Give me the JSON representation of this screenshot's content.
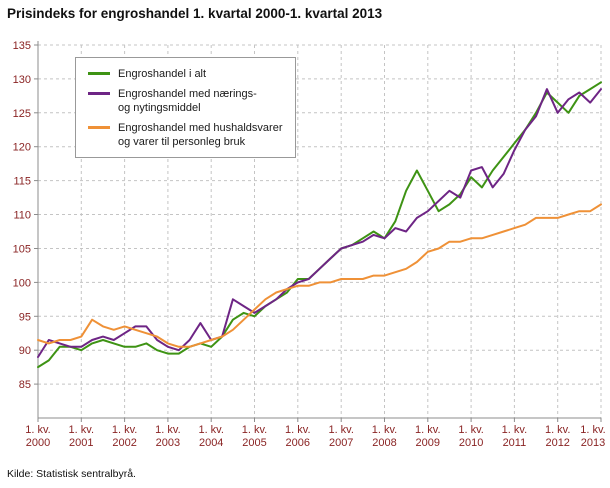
{
  "page": {
    "title": "Prisindeks for engroshandel 1. kvartal 2000-1. kvartal 2013",
    "source": "Kilde: Statistisk sentralbyrå."
  },
  "chart_data": {
    "type": "line",
    "title": "Prisindeks for engroshandel 1. kvartal 2000-1. kvartal 2013",
    "grid": true,
    "legend_position": "top-left",
    "ylim": [
      80,
      135
    ],
    "yticks": [
      85,
      90,
      95,
      100,
      105,
      110,
      115,
      120,
      125,
      130,
      135
    ],
    "x_tick_prefix": "1. kv.",
    "years": [
      "2000",
      "2001",
      "2002",
      "2003",
      "2004",
      "2005",
      "2006",
      "2007",
      "2008",
      "2009",
      "2010",
      "2011",
      "2012",
      "2013"
    ],
    "points_per_year": 4,
    "x_start": "1. kv. 2000",
    "x_end": "1. kv. 2013",
    "colors": {
      "grid": "#c4c4c4",
      "axis": "#8c8c8c",
      "axis_label": "#8a2424"
    },
    "series": [
      {
        "id": "total",
        "name": "Engroshandel i alt",
        "legend_lines": [
          "Engroshandel i alt"
        ],
        "color": "#3e9314",
        "values": [
          87.5,
          88.5,
          90.5,
          90.5,
          90.0,
          91.0,
          91.5,
          91.0,
          90.5,
          90.5,
          91.0,
          90.0,
          89.5,
          89.5,
          90.5,
          91.0,
          90.5,
          92.0,
          94.5,
          95.5,
          95.0,
          96.5,
          97.5,
          98.5,
          100.5,
          100.5,
          102.0,
          103.5,
          105.0,
          105.5,
          106.5,
          107.5,
          106.5,
          109.0,
          113.5,
          116.5,
          113.5,
          110.5,
          111.5,
          113.0,
          115.5,
          114.0,
          116.5,
          118.5,
          120.5,
          122.5,
          125.0,
          128.0,
          126.5,
          125.0,
          127.5,
          128.5,
          129.5
        ]
      },
      {
        "id": "food-beverages",
        "name": "Engroshandel med nærings- og nytingsmiddel",
        "legend_lines": [
          "Engroshandel med nærings-",
          "og nytingsmiddel"
        ],
        "color": "#6e2585",
        "values": [
          89.0,
          91.5,
          91.0,
          90.5,
          90.5,
          91.5,
          92.0,
          91.5,
          92.5,
          93.5,
          93.5,
          91.5,
          90.5,
          90.0,
          91.5,
          94.0,
          91.5,
          92.0,
          97.5,
          96.5,
          95.5,
          96.5,
          97.5,
          99.0,
          100.0,
          100.5,
          102.0,
          103.5,
          105.0,
          105.5,
          106.0,
          107.0,
          106.5,
          108.0,
          107.5,
          109.5,
          110.5,
          112.0,
          113.5,
          112.5,
          116.5,
          117.0,
          114.0,
          116.0,
          119.5,
          122.5,
          124.5,
          128.5,
          125.0,
          127.0,
          128.0,
          126.5,
          128.5
        ]
      },
      {
        "id": "household-goods",
        "name": "Engroshandel med hushaldsvarer og varer til personleg bruk",
        "legend_lines": [
          "Engroshandel med hushaldsvarer",
          "og varer til personleg bruk"
        ],
        "color": "#ef9137",
        "values": [
          91.5,
          91.0,
          91.5,
          91.5,
          92.0,
          94.5,
          93.5,
          93.0,
          93.5,
          93.0,
          92.5,
          92.0,
          91.0,
          90.5,
          90.5,
          91.0,
          91.5,
          92.0,
          93.0,
          94.5,
          96.0,
          97.5,
          98.5,
          99.0,
          99.5,
          99.5,
          100.0,
          100.0,
          100.5,
          100.5,
          100.5,
          101.0,
          101.0,
          101.5,
          102.0,
          103.0,
          104.5,
          105.0,
          106.0,
          106.0,
          106.5,
          106.5,
          107.0,
          107.5,
          108.0,
          108.5,
          109.5,
          109.5,
          109.5,
          110.0,
          110.5,
          110.5,
          111.5
        ]
      }
    ]
  }
}
